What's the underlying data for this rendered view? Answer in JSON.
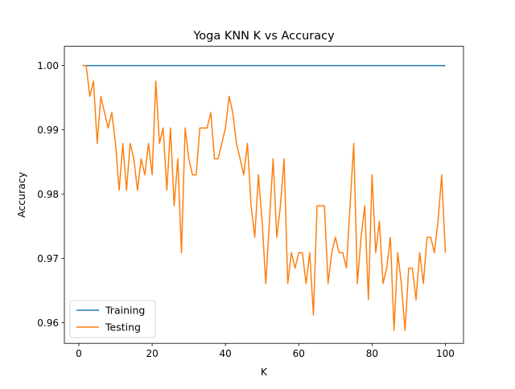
{
  "chart_data": {
    "type": "line",
    "title": "Yoga KNN K vs Accuracy",
    "xlabel": "K",
    "ylabel": "Accuracy",
    "xlim": [
      -3.95,
      104.95
    ],
    "ylim": [
      0.9568,
      1.003
    ],
    "xticks": [
      0,
      20,
      40,
      60,
      80,
      100
    ],
    "xtick_labels": [
      "0",
      "20",
      "40",
      "60",
      "80",
      "100"
    ],
    "yticks": [
      0.96,
      0.97,
      0.98,
      0.99,
      1.0
    ],
    "ytick_labels": [
      "0.96",
      "0.97",
      "0.98",
      "0.99",
      "1.00"
    ],
    "grid": false,
    "legend_position": "lower-left",
    "x": [
      1,
      2,
      3,
      4,
      5,
      6,
      7,
      8,
      9,
      10,
      11,
      12,
      13,
      14,
      15,
      16,
      17,
      18,
      19,
      20,
      21,
      22,
      23,
      24,
      25,
      26,
      27,
      28,
      29,
      30,
      31,
      32,
      33,
      34,
      35,
      36,
      37,
      38,
      39,
      40,
      41,
      42,
      43,
      44,
      45,
      46,
      47,
      48,
      49,
      50,
      51,
      52,
      53,
      54,
      55,
      56,
      57,
      58,
      59,
      60,
      61,
      62,
      63,
      64,
      65,
      66,
      67,
      68,
      69,
      70,
      71,
      72,
      73,
      74,
      75,
      76,
      77,
      78,
      79,
      80,
      81,
      82,
      83,
      84,
      85,
      86,
      87,
      88,
      89,
      90,
      91,
      92,
      93,
      94,
      95,
      96,
      97,
      98,
      99,
      100
    ],
    "series": [
      {
        "name": "Training",
        "color": "#1f77b4",
        "values": [
          1,
          1,
          1,
          1,
          1,
          1,
          1,
          1,
          1,
          1,
          1,
          1,
          1,
          1,
          1,
          1,
          1,
          1,
          1,
          1,
          1,
          1,
          1,
          1,
          1,
          1,
          1,
          1,
          1,
          1,
          1,
          1,
          1,
          1,
          1,
          1,
          1,
          1,
          1,
          1,
          1,
          1,
          1,
          1,
          1,
          1,
          1,
          1,
          1,
          1,
          1,
          1,
          1,
          1,
          1,
          1,
          1,
          1,
          1,
          1,
          1,
          1,
          1,
          1,
          1,
          1,
          1,
          1,
          1,
          1,
          1,
          1,
          1,
          1,
          1,
          1,
          1,
          1,
          1,
          1,
          1,
          1,
          1,
          1,
          1,
          1,
          1,
          1,
          1,
          1,
          1,
          1,
          1,
          1,
          1,
          1,
          1,
          1,
          1,
          1
        ]
      },
      {
        "name": "Testing",
        "color": "#ff7f0e",
        "values": [
          1.0,
          1.0,
          0.9952,
          0.9976,
          0.9879,
          0.9952,
          0.9927,
          0.9903,
          0.9927,
          0.9879,
          0.9806,
          0.9879,
          0.9806,
          0.9879,
          0.9855,
          0.9806,
          0.9855,
          0.983,
          0.9879,
          0.983,
          0.9976,
          0.9879,
          0.9903,
          0.9806,
          0.9903,
          0.9782,
          0.9855,
          0.9709,
          0.9903,
          0.9855,
          0.983,
          0.983,
          0.9903,
          0.9903,
          0.9903,
          0.9927,
          0.9855,
          0.9855,
          0.9879,
          0.9903,
          0.9952,
          0.9927,
          0.9879,
          0.9855,
          0.983,
          0.9879,
          0.9782,
          0.9733,
          0.983,
          0.9758,
          0.9661,
          0.9758,
          0.9855,
          0.9733,
          0.9782,
          0.9855,
          0.9661,
          0.9709,
          0.9685,
          0.9709,
          0.9709,
          0.9661,
          0.9709,
          0.9612,
          0.9782,
          0.9782,
          0.9782,
          0.9661,
          0.9709,
          0.9733,
          0.9709,
          0.9709,
          0.9685,
          0.9782,
          0.9879,
          0.9661,
          0.9733,
          0.9782,
          0.9636,
          0.983,
          0.9709,
          0.9758,
          0.9661,
          0.9685,
          0.9733,
          0.9588,
          0.9709,
          0.9661,
          0.9588,
          0.9685,
          0.9685,
          0.9636,
          0.9709,
          0.9661,
          0.9733,
          0.9733,
          0.9709,
          0.9758,
          0.983,
          0.9709
        ]
      }
    ]
  }
}
